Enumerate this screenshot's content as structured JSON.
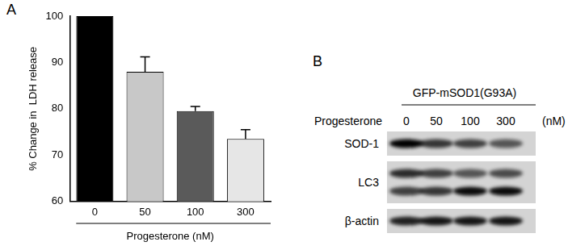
{
  "panel_labels": [
    "A",
    "B"
  ],
  "chart_data": {
    "type": "bar",
    "categories": [
      "0",
      "50",
      "100",
      "300"
    ],
    "values": [
      100,
      88,
      79.5,
      73.5
    ],
    "errors": [
      0,
      3.2,
      1,
      2
    ],
    "colors": [
      "#000000",
      "#c8c8c8",
      "#5a5a5a",
      "#e6e6e6"
    ],
    "x_label": "Progesterone (nM)",
    "y_label": "% Change in  LDH release",
    "ylim": [
      60,
      100
    ],
    "yticks": [
      60,
      70,
      80,
      90,
      100
    ],
    "grid": false
  },
  "blot": {
    "construct": "GFP-mSOD1(G93A)",
    "treatment": "Progesterone",
    "lanes": [
      "0",
      "50",
      "100",
      "300"
    ],
    "unit": "(nM)",
    "rows": [
      {
        "label": "SOD-1",
        "bands": [
          [
            1,
            0.75,
            0.7,
            0.6
          ]
        ]
      },
      {
        "label": "LC3",
        "bands": [
          [
            0.8,
            0.7,
            0.6,
            0.65
          ],
          [
            0.7,
            0.75,
            0.95,
            0.95
          ]
        ]
      },
      {
        "label": "β-actin",
        "bands": [
          [
            0.85,
            0.9,
            0.9,
            0.9
          ]
        ]
      }
    ]
  }
}
